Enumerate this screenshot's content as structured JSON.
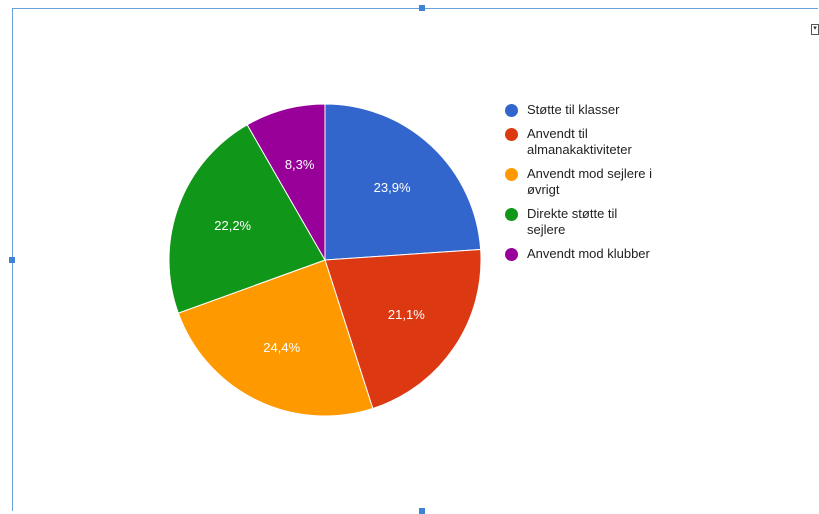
{
  "chart_data": {
    "type": "pie",
    "slices": [
      {
        "name": "Støtte til klasser",
        "value": 23.9,
        "label": "23,9%",
        "color": "#3366cc"
      },
      {
        "name": "Anvendt til almanakaktiviteter",
        "value": 21.1,
        "label": "21,1%",
        "color": "#dc3912"
      },
      {
        "name": "Anvendt mod sejlere i øvrigt",
        "value": 24.4,
        "label": "24,4%",
        "color": "#ff9900"
      },
      {
        "name": "Direkte støtte til sejlere",
        "value": 22.2,
        "label": "22,2%",
        "color": "#109618"
      },
      {
        "name": "Anvendt mod klubber",
        "value": 8.3,
        "label": "8,3%",
        "color": "#990099"
      }
    ],
    "legend_position": "right"
  },
  "legend": [
    {
      "line1": "Støtte til klasser",
      "line2": ""
    },
    {
      "line1": "Anvendt til",
      "line2": "almanakaktiviteter"
    },
    {
      "line1": "Anvendt mod sejlere i",
      "line2": "øvrigt"
    },
    {
      "line1": "Direkte støtte til",
      "line2": "sejlere"
    },
    {
      "line1": "Anvendt mod klubber",
      "line2": ""
    }
  ],
  "menu_icon": "chevron-down-icon"
}
